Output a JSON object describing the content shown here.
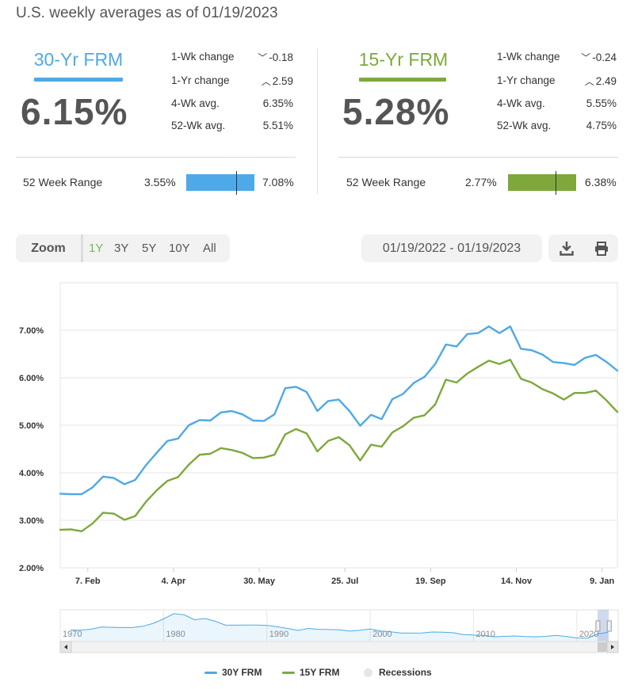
{
  "headline": "U.S. weekly averages as of 01/19/2023",
  "cards": [
    {
      "title": "30-Yr FRM",
      "color": "#4fa9e6",
      "rate": "6.15%",
      "stats": [
        {
          "label": "1-Wk change",
          "arrow": "﹀",
          "value": "-0.18"
        },
        {
          "label": "1-Yr change",
          "arrow": "︿",
          "value": "2.59"
        },
        {
          "label": "4-Wk avg.",
          "arrow": "",
          "value": "6.35%"
        },
        {
          "label": "52-Wk avg.",
          "arrow": "",
          "value": "5.51%"
        }
      ],
      "range": {
        "label": "52 Week Range",
        "low": "3.55%",
        "high": "7.08%",
        "current_fraction": 0.736
      }
    },
    {
      "title": "15-Yr FRM",
      "color": "#7ea83b",
      "rate": "5.28%",
      "stats": [
        {
          "label": "1-Wk change",
          "arrow": "﹀",
          "value": "-0.24"
        },
        {
          "label": "1-Yr change",
          "arrow": "︿",
          "value": "2.49"
        },
        {
          "label": "4-Wk avg.",
          "arrow": "",
          "value": "5.55%"
        },
        {
          "label": "52-Wk avg.",
          "arrow": "",
          "value": "4.75%"
        }
      ],
      "range": {
        "label": "52 Week Range",
        "low": "2.77%",
        "high": "6.38%",
        "current_fraction": 0.695
      }
    }
  ],
  "toolbar": {
    "zoom_label": "Zoom",
    "zoom_options": [
      "1Y",
      "3Y",
      "5Y",
      "10Y",
      "All"
    ],
    "zoom_selected": "1Y",
    "date_range": "01/19/2022 - 01/19/2023",
    "download_icon": "download-icon",
    "print_icon": "print-icon"
  },
  "chart_data": {
    "type": "line",
    "title": "",
    "xlabel": "",
    "ylabel": "",
    "ylim": [
      2,
      8
    ],
    "y_ticks": [
      "2.00%",
      "3.00%",
      "4.00%",
      "5.00%",
      "6.00%",
      "7.00%"
    ],
    "x_tick_labels": [
      "7. Feb",
      "4. Apr",
      "30. May",
      "25. Jul",
      "19. Sep",
      "14. Nov",
      "9. Jan"
    ],
    "x_start": "2022-01-20",
    "x_end": "2023-01-19",
    "grid": true,
    "legend_position": "bottom",
    "series": [
      {
        "name": "30Y FRM",
        "color": "#4fa9e6",
        "values": [
          3.56,
          3.55,
          3.55,
          3.69,
          3.92,
          3.89,
          3.76,
          3.85,
          4.16,
          4.42,
          4.67,
          4.72,
          5.0,
          5.11,
          5.1,
          5.27,
          5.3,
          5.23,
          5.1,
          5.09,
          5.23,
          5.78,
          5.81,
          5.7,
          5.3,
          5.51,
          5.54,
          5.3,
          4.99,
          5.22,
          5.13,
          5.55,
          5.66,
          5.89,
          6.02,
          6.29,
          6.7,
          6.66,
          6.92,
          6.94,
          7.08,
          6.94,
          7.08,
          6.61,
          6.58,
          6.49,
          6.33,
          6.31,
          6.27,
          6.42,
          6.48,
          6.33,
          6.15
        ]
      },
      {
        "name": "15Y FRM",
        "color": "#7ea83b",
        "values": [
          2.8,
          2.81,
          2.77,
          2.93,
          3.16,
          3.14,
          3.01,
          3.09,
          3.39,
          3.63,
          3.83,
          3.91,
          4.17,
          4.38,
          4.4,
          4.52,
          4.48,
          4.42,
          4.31,
          4.32,
          4.38,
          4.81,
          4.92,
          4.83,
          4.45,
          4.67,
          4.75,
          4.58,
          4.26,
          4.59,
          4.55,
          4.85,
          4.98,
          5.16,
          5.21,
          5.44,
          5.96,
          5.9,
          6.09,
          6.23,
          6.36,
          6.29,
          6.38,
          5.98,
          5.9,
          5.76,
          5.67,
          5.54,
          5.68,
          5.68,
          5.73,
          5.52,
          5.28
        ]
      }
    ],
    "navigator": {
      "x_labels": [
        "1970",
        "1980",
        "1990",
        "2000",
        "2010",
        "2020"
      ],
      "series_color": "#4fa9e6",
      "values_by_year": [
        [
          1971,
          7.5
        ],
        [
          1972,
          7.4
        ],
        [
          1973,
          8.0
        ],
        [
          1974,
          9.2
        ],
        [
          1975,
          9.0
        ],
        [
          1976,
          8.9
        ],
        [
          1977,
          8.9
        ],
        [
          1978,
          9.6
        ],
        [
          1979,
          11.2
        ],
        [
          1980,
          13.7
        ],
        [
          1981,
          16.6
        ],
        [
          1982,
          16.0
        ],
        [
          1983,
          13.2
        ],
        [
          1984,
          13.9
        ],
        [
          1985,
          12.4
        ],
        [
          1986,
          10.2
        ],
        [
          1987,
          10.2
        ],
        [
          1988,
          10.3
        ],
        [
          1989,
          10.3
        ],
        [
          1990,
          10.1
        ],
        [
          1991,
          9.3
        ],
        [
          1992,
          8.4
        ],
        [
          1993,
          7.3
        ],
        [
          1994,
          8.4
        ],
        [
          1995,
          7.9
        ],
        [
          1996,
          7.8
        ],
        [
          1997,
          7.6
        ],
        [
          1998,
          6.9
        ],
        [
          1999,
          7.4
        ],
        [
          2000,
          8.1
        ],
        [
          2001,
          7.0
        ],
        [
          2002,
          6.5
        ],
        [
          2003,
          5.8
        ],
        [
          2004,
          5.8
        ],
        [
          2005,
          5.9
        ],
        [
          2006,
          6.4
        ],
        [
          2007,
          6.3
        ],
        [
          2008,
          6.0
        ],
        [
          2009,
          5.0
        ],
        [
          2010,
          4.7
        ],
        [
          2011,
          4.5
        ],
        [
          2012,
          3.7
        ],
        [
          2013,
          4.0
        ],
        [
          2014,
          4.2
        ],
        [
          2015,
          3.9
        ],
        [
          2016,
          3.7
        ],
        [
          2017,
          4.0
        ],
        [
          2018,
          4.5
        ],
        [
          2019,
          3.9
        ],
        [
          2020,
          3.1
        ],
        [
          2021,
          3.0
        ],
        [
          2022,
          5.3
        ],
        [
          2023,
          6.2
        ]
      ]
    },
    "legend": [
      {
        "name": "30Y FRM",
        "color": "#4fa9e6",
        "marker": "line"
      },
      {
        "name": "15Y FRM",
        "color": "#7ea83b",
        "marker": "line"
      },
      {
        "name": "Recessions",
        "color": "#e6e6e6",
        "marker": "dot"
      }
    ]
  }
}
